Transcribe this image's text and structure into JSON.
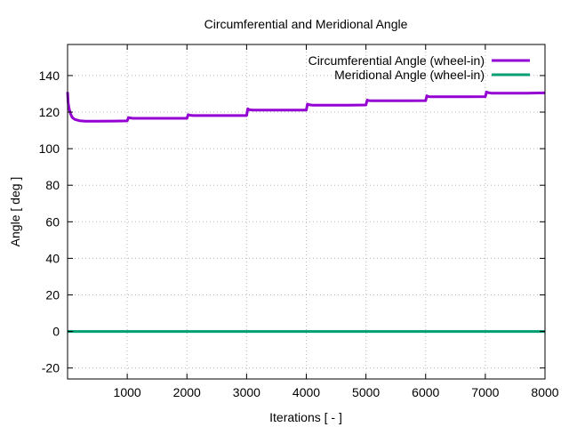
{
  "chart_data": {
    "type": "line",
    "title": "Circumferential and Meridional Angle",
    "xlabel": "Iterations [ - ]",
    "ylabel": "Angle [ deg ]",
    "xlim": [
      0,
      8000
    ],
    "ylim": [
      -26,
      157
    ],
    "xticks": [
      1000,
      2000,
      3000,
      4000,
      5000,
      6000,
      7000,
      8000
    ],
    "yticks": [
      -20,
      0,
      20,
      40,
      60,
      80,
      100,
      120,
      140
    ],
    "grid": true,
    "legend_position": "top-right",
    "series": [
      {
        "name": "Circumferential Angle (wheel-in)",
        "color": "#9400d3",
        "x": [
          0,
          10,
          25,
          50,
          80,
          120,
          200,
          300,
          500,
          800,
          1000,
          1020,
          1050,
          1100,
          1300,
          1600,
          2000,
          2020,
          2050,
          2100,
          2400,
          2700,
          3000,
          3020,
          3050,
          3100,
          3400,
          3700,
          4000,
          4020,
          4050,
          4100,
          4400,
          4700,
          5000,
          5020,
          5050,
          5100,
          5400,
          5700,
          6000,
          6020,
          6050,
          6100,
          6400,
          6700,
          7000,
          7020,
          7050,
          7100,
          7400,
          7700,
          8000
        ],
        "y": [
          131,
          125,
          122,
          119,
          117,
          116,
          115.3,
          115,
          115,
          115.1,
          115.2,
          117,
          116.8,
          116.6,
          116.6,
          116.6,
          116.6,
          118.6,
          118.3,
          118.1,
          118.1,
          118.1,
          118.1,
          121.8,
          121.3,
          121.1,
          121.1,
          121.1,
          121.1,
          124.4,
          124,
          123.8,
          123.8,
          123.8,
          123.9,
          126.6,
          126.3,
          126.2,
          126.2,
          126.2,
          126.3,
          128.9,
          128.5,
          128.4,
          128.4,
          128.4,
          128.5,
          131,
          130.6,
          130.4,
          130.4,
          130.4,
          130.5
        ]
      },
      {
        "name": "Meridional Angle (wheel-in)",
        "color": "#009e73",
        "x": [
          0,
          8000
        ],
        "y": [
          0,
          0
        ]
      }
    ]
  }
}
